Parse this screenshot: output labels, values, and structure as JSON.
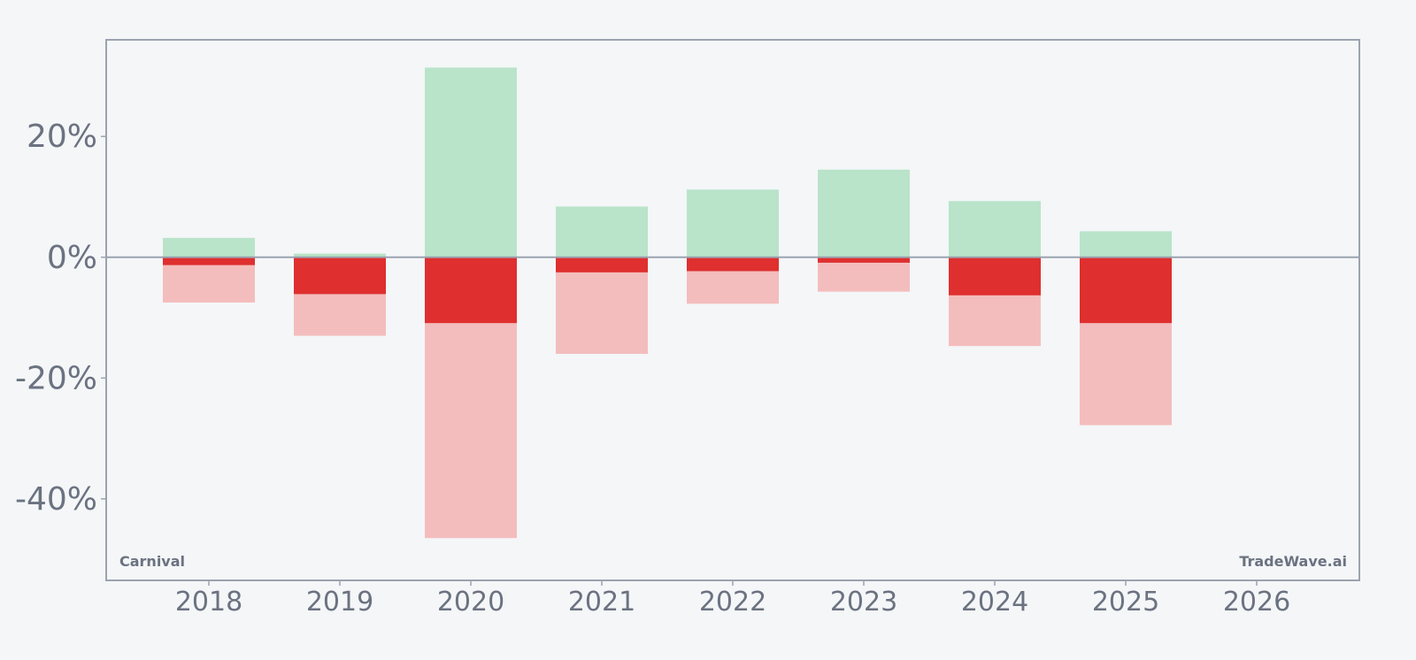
{
  "colors": {
    "background": "#f4f6f8",
    "axis": "#9ca3af",
    "text": "#6b7280",
    "max_gain": "#b9e4c9",
    "max_drawdown": "#f4bdbd",
    "final_return": "#df2f2f"
  },
  "chart_data": {
    "type": "bar",
    "categories": [
      "2018",
      "2019",
      "2020",
      "2021",
      "2022",
      "2023",
      "2024",
      "2025",
      "2026"
    ],
    "series": [
      {
        "values": [
          3.2,
          0.6,
          31.4,
          8.4,
          11.2,
          14.5,
          9.3,
          4.3,
          null
        ],
        "color": "#b9e4c9"
      },
      {
        "values": [
          -7.5,
          -13.0,
          -46.5,
          -16.0,
          -7.7,
          -5.7,
          -14.7,
          -27.8,
          null
        ],
        "color": "#f4bdbd"
      },
      {
        "values": [
          -1.3,
          -6.1,
          -10.9,
          -2.5,
          -2.3,
          -0.9,
          -6.3,
          -10.9,
          null
        ],
        "color": "#df2f2f"
      }
    ],
    "y_ticks": [
      20,
      0,
      -20,
      -40
    ],
    "y_tick_labels": [
      "20%",
      "0%",
      "-20%",
      "-40%"
    ],
    "ylim": [
      -53.5,
      36
    ],
    "grid": false,
    "legend": "none",
    "zero_line": true,
    "annotations": {
      "bottom_left": "Carnival",
      "bottom_right": "TradeWave.ai"
    }
  }
}
